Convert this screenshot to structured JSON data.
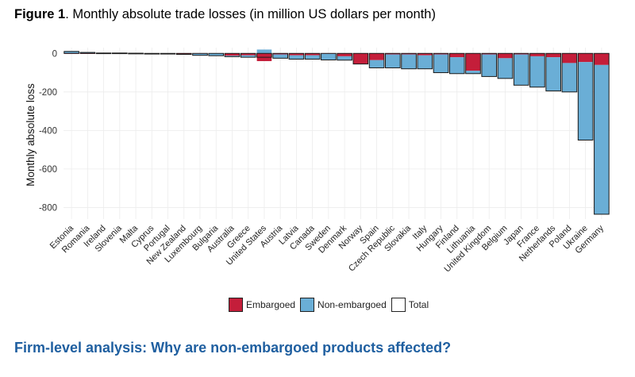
{
  "figure": {
    "number_label": "Figure 1",
    "title_text": ". Monthly absolute trade losses (in million US dollars per month)"
  },
  "colors": {
    "embargoed": "#c41e3a",
    "non_embargoed": "#6aaed6",
    "outline": "#1a1a1a",
    "grid": "#ececec",
    "subheading": "#1f5fa0"
  },
  "chart_data": {
    "type": "bar",
    "title": "Monthly absolute trade losses (in million US dollars per month)",
    "ylabel": "Monthly absolute loss",
    "xlabel": "",
    "ylim": [
      -860,
      30
    ],
    "yticks": [
      0,
      -200,
      -400,
      -600,
      -800
    ],
    "ytick_labels": [
      "0",
      "-200",
      "-400",
      "-600",
      "-800"
    ],
    "stacked": true,
    "categories": [
      "Estonia",
      "Romania",
      "Ireland",
      "Slovenia",
      "Malta",
      "Cyprus",
      "Portugal",
      "New Zealand",
      "Luxembourg",
      "Bulgaria",
      "Australia",
      "Greece",
      "United States",
      "Austria",
      "Latvia",
      "Canada",
      "Sweden",
      "Denmark",
      "Norway",
      "Spain",
      "Czech Republic",
      "Slovakia",
      "Italy",
      "Hungary",
      "Finland",
      "Lithuania",
      "United Kingdom",
      "Belgium",
      "Japan",
      "France",
      "Netherlands",
      "Poland",
      "Ukraine",
      "Germany"
    ],
    "series": [
      {
        "name": "Embargoed",
        "values": [
          -2,
          -1,
          0,
          0,
          0,
          0,
          0,
          -3,
          -2,
          0,
          -12,
          -10,
          -40,
          -5,
          -10,
          -10,
          -2,
          -15,
          -55,
          -35,
          -5,
          -5,
          -10,
          -5,
          -20,
          -90,
          -5,
          -25,
          -5,
          -15,
          -20,
          -50,
          -45,
          -60
        ]
      },
      {
        "name": "Non-embargoed",
        "values": [
          12,
          6,
          2,
          2,
          1,
          0,
          -1,
          -2,
          -8,
          -12,
          -5,
          -10,
          20,
          -20,
          -20,
          -20,
          -32,
          -20,
          0,
          -40,
          -70,
          -75,
          -70,
          -95,
          -85,
          -15,
          -115,
          -105,
          -160,
          -160,
          -175,
          -150,
          -405,
          -775
        ]
      },
      {
        "name": "Total",
        "values": [
          10,
          5,
          2,
          2,
          1,
          0,
          -1,
          -5,
          -10,
          -12,
          -17,
          -20,
          -20,
          -25,
          -30,
          -30,
          -34,
          -35,
          -55,
          -75,
          -75,
          -80,
          -80,
          -100,
          -105,
          -105,
          -120,
          -130,
          -165,
          -175,
          -195,
          -200,
          -450,
          -835
        ]
      }
    ],
    "legend": [
      "Embargoed",
      "Non-embargoed",
      "Total"
    ],
    "legend_position": "bottom",
    "grid": true
  },
  "subheading": "Firm-level analysis: Why are non-embargoed products affected?"
}
